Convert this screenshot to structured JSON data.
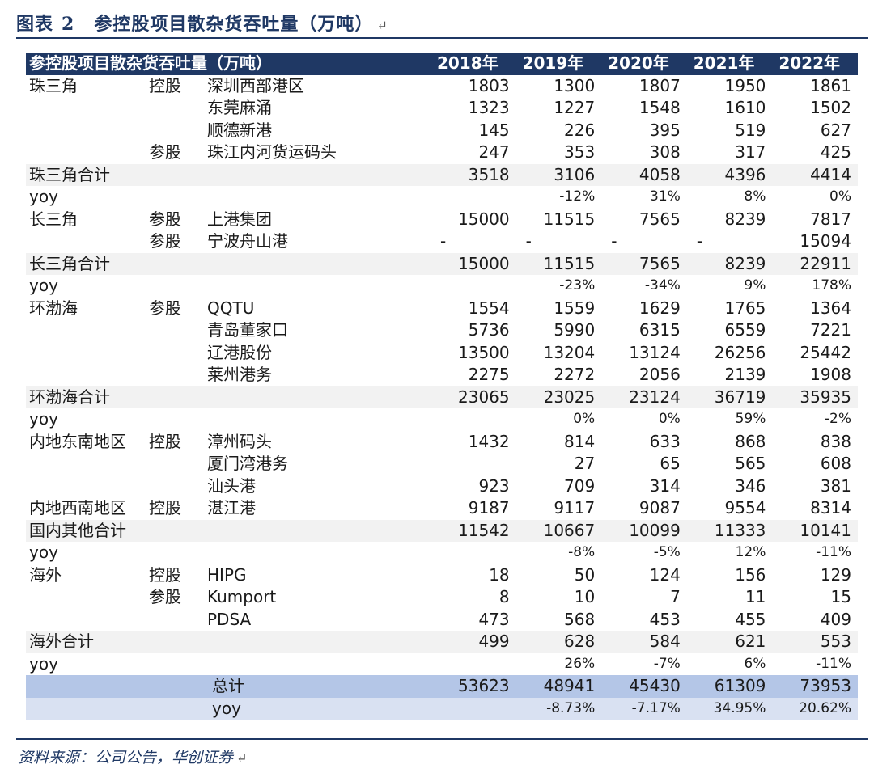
{
  "title": {
    "prefix": "图表",
    "number": "2",
    "text": "参控股项目散杂货吞吐量（万吨）",
    "mark": "↵"
  },
  "table": {
    "header": {
      "label": "参控股项目散杂货吞吐量（万吨）",
      "years": [
        "2018年",
        "2019年",
        "2020年",
        "2021年",
        "2022年"
      ]
    },
    "rows": [
      {
        "type": "data",
        "region": "珠三角",
        "stake": "控股",
        "name": "深圳西部港区",
        "v": [
          "1803",
          "1300",
          "1807",
          "1950",
          "1861"
        ]
      },
      {
        "type": "data",
        "region": "",
        "stake": "",
        "name": "东莞麻涌",
        "v": [
          "1323",
          "1227",
          "1548",
          "1610",
          "1502"
        ]
      },
      {
        "type": "data",
        "region": "",
        "stake": "",
        "name": "顺德新港",
        "v": [
          "145",
          "226",
          "395",
          "519",
          "627"
        ]
      },
      {
        "type": "data",
        "region": "",
        "stake": "参股",
        "name": "珠江内河货运码头",
        "v": [
          "247",
          "353",
          "308",
          "317",
          "425"
        ]
      },
      {
        "type": "sub",
        "region": "珠三角合计",
        "stake": "",
        "name": "",
        "v": [
          "3518",
          "3106",
          "4058",
          "4396",
          "4414"
        ]
      },
      {
        "type": "yoy",
        "region": "yoy",
        "stake": "",
        "name": "",
        "v": [
          "",
          "-12%",
          "31%",
          "8%",
          "0%"
        ]
      },
      {
        "type": "data",
        "region": "长三角",
        "stake": "参股",
        "name": "上港集团",
        "v": [
          "15000",
          "11515",
          "7565",
          "8239",
          "7817"
        ]
      },
      {
        "type": "data",
        "region": "",
        "stake": "参股",
        "name": "宁波舟山港",
        "v": [
          "-",
          "-",
          "-",
          "-",
          "15094"
        ]
      },
      {
        "type": "sub",
        "region": "长三角合计",
        "stake": "",
        "name": "",
        "v": [
          "15000",
          "11515",
          "7565",
          "8239",
          "22911"
        ]
      },
      {
        "type": "yoy",
        "region": "yoy",
        "stake": "",
        "name": "",
        "v": [
          "",
          "-23%",
          "-34%",
          "9%",
          "178%"
        ]
      },
      {
        "type": "data",
        "region": "环渤海",
        "stake": "参股",
        "name": "QQTU",
        "v": [
          "1554",
          "1559",
          "1629",
          "1765",
          "1364"
        ]
      },
      {
        "type": "data",
        "region": "",
        "stake": "",
        "name": "青岛董家口",
        "v": [
          "5736",
          "5990",
          "6315",
          "6559",
          "7221"
        ]
      },
      {
        "type": "data",
        "region": "",
        "stake": "",
        "name": "辽港股份",
        "v": [
          "13500",
          "13204",
          "13124",
          "26256",
          "25442"
        ]
      },
      {
        "type": "data",
        "region": "",
        "stake": "",
        "name": "莱州港务",
        "v": [
          "2275",
          "2272",
          "2056",
          "2139",
          "1908"
        ]
      },
      {
        "type": "sub",
        "region": "环渤海合计",
        "stake": "",
        "name": "",
        "v": [
          "23065",
          "23025",
          "23124",
          "36719",
          "35935"
        ]
      },
      {
        "type": "yoy",
        "region": "yoy",
        "stake": "",
        "name": "",
        "v": [
          "",
          "0%",
          "0%",
          "59%",
          "-2%"
        ]
      },
      {
        "type": "data",
        "region": "内地东南地区",
        "stake": "控股",
        "name": "漳州码头",
        "v": [
          "1432",
          "814",
          "633",
          "868",
          "838"
        ]
      },
      {
        "type": "data",
        "region": "",
        "stake": "",
        "name": "厦门湾港务",
        "v": [
          "",
          "27",
          "65",
          "565",
          "608"
        ]
      },
      {
        "type": "data",
        "region": "",
        "stake": "",
        "name": "汕头港",
        "v": [
          "923",
          "709",
          "314",
          "346",
          "381"
        ]
      },
      {
        "type": "data",
        "region": "内地西南地区",
        "stake": "控股",
        "name": "湛江港",
        "v": [
          "9187",
          "9117",
          "9087",
          "9554",
          "8314"
        ]
      },
      {
        "type": "sub",
        "region": "国内其他合计",
        "stake": "",
        "name": "",
        "v": [
          "11542",
          "10667",
          "10099",
          "11333",
          "10141"
        ]
      },
      {
        "type": "yoy",
        "region": "yoy",
        "stake": "",
        "name": "",
        "v": [
          "",
          "-8%",
          "-5%",
          "12%",
          "-11%"
        ]
      },
      {
        "type": "data",
        "region": "海外",
        "stake": "控股",
        "name": "HIPG",
        "v": [
          "18",
          "50",
          "124",
          "156",
          "129"
        ]
      },
      {
        "type": "data",
        "region": "",
        "stake": "参股",
        "name": "Kumport",
        "v": [
          "8",
          "10",
          "7",
          "11",
          "15"
        ]
      },
      {
        "type": "data",
        "region": "",
        "stake": "",
        "name": "PDSA",
        "v": [
          "473",
          "568",
          "453",
          "455",
          "409"
        ]
      },
      {
        "type": "sub",
        "region": "海外合计",
        "stake": "",
        "name": "",
        "v": [
          "499",
          "628",
          "584",
          "621",
          "553"
        ]
      },
      {
        "type": "yoy",
        "region": "yoy",
        "stake": "",
        "name": "",
        "v": [
          "",
          "26%",
          "-7%",
          "6%",
          "-11%"
        ]
      },
      {
        "type": "grand",
        "region": "",
        "stake": "",
        "name": "总计",
        "v": [
          "53623",
          "48941",
          "45430",
          "61309",
          "73953"
        ]
      },
      {
        "type": "grandyoy",
        "region": "",
        "stake": "",
        "name": "yoy",
        "v": [
          "",
          "-8.73%",
          "-7.17%",
          "34.95%",
          "20.62%"
        ]
      }
    ]
  },
  "source": {
    "text": "资料来源：公司公告，华创证券",
    "mark": "↵"
  }
}
